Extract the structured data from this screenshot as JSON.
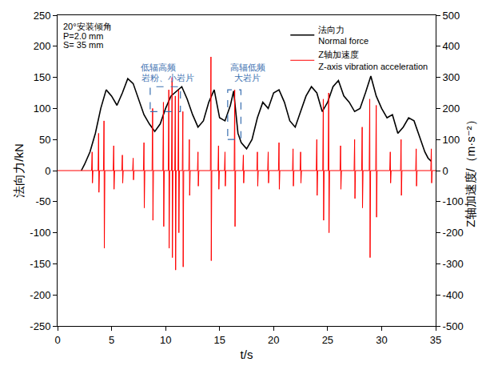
{
  "chart_data": {
    "type": "line",
    "x_label": "t/s",
    "y_label": "法向力/kN",
    "y2_label": "Z轴加速度/（m·s⁻²）",
    "xlim": [
      0,
      35
    ],
    "xticks": [
      0,
      5,
      10,
      15,
      20,
      25,
      30,
      35
    ],
    "ylim": [
      -250,
      250
    ],
    "yticks": [
      -250,
      -200,
      -150,
      -100,
      -50,
      0,
      50,
      100,
      150,
      200,
      250
    ],
    "y2lim": [
      -500,
      500
    ],
    "y2ticks": [
      -500,
      -400,
      -300,
      -200,
      -100,
      0,
      100,
      200,
      300,
      400,
      500
    ],
    "legend": "top-right",
    "grid": false,
    "annotations": [
      {
        "text": "20°安装倾角",
        "x": 0.4,
        "y": 232
      },
      {
        "text": "P=2.0 mm",
        "x": 0.4,
        "y": 217
      },
      {
        "text": "S= 35 mm",
        "x": 0.4,
        "y": 202
      },
      {
        "text": "低辐高频",
        "x": 9.3,
        "y": 166
      },
      {
        "text": "岩粉、小岩片",
        "x": 10.2,
        "y": 150
      },
      {
        "text": "高辐低频",
        "x": 17.6,
        "y": 166
      },
      {
        "text": "大岩片",
        "x": 17.6,
        "y": 150
      }
    ],
    "series": [
      {
        "name": "法向力",
        "name_en": "Normal force",
        "color": "#000000",
        "axis": "y",
        "x": [
          2.2,
          2.5,
          3,
          3.5,
          4,
          4.5,
          5,
          5.5,
          6,
          6.5,
          7,
          7.5,
          8,
          8.5,
          9,
          9.5,
          10,
          10.5,
          11,
          11.5,
          12,
          12.5,
          13,
          13.5,
          14,
          14.5,
          15,
          15.5,
          16,
          16.3,
          16.7,
          17,
          17.5,
          18,
          18.5,
          19,
          19.5,
          20,
          20.5,
          21,
          21.5,
          22,
          22.5,
          23,
          23.5,
          24,
          24.5,
          25,
          25.5,
          26,
          26.5,
          27,
          27.5,
          28,
          28.5,
          29,
          29.5,
          30,
          30.5,
          31,
          31.5,
          32,
          32.5,
          33,
          33.5,
          34,
          34.3,
          34.6
        ],
        "values": [
          0,
          10,
          30,
          60,
          100,
          130,
          120,
          105,
          125,
          148,
          140,
          115,
          90,
          75,
          63,
          75,
          100,
          120,
          128,
          135,
          115,
          90,
          70,
          80,
          110,
          130,
          85,
          80,
          105,
          128,
          60,
          45,
          35,
          50,
          85,
          110,
          100,
          125,
          130,
          110,
          80,
          70,
          95,
          120,
          135,
          125,
          95,
          110,
          135,
          145,
          120,
          110,
          95,
          100,
          125,
          152,
          120,
          100,
          85,
          90,
          60,
          70,
          85,
          80,
          55,
          30,
          20,
          15
        ]
      },
      {
        "name": "Z轴加速度",
        "name_en": "Z-axis vibration acceleration",
        "color": "#ff0000",
        "axis": "y2",
        "x": [
          0,
          3.15,
          3.2,
          3.23,
          3.28,
          3.75,
          3.8,
          3.83,
          3.88,
          4.25,
          4.3,
          4.33,
          4.38,
          5.15,
          5.2,
          5.23,
          5.28,
          5.95,
          6,
          6.03,
          6.08,
          6.95,
          7,
          7.03,
          7.08,
          7.95,
          8,
          8.03,
          8.08,
          8.75,
          8.8,
          8.83,
          8.88,
          9.75,
          9.8,
          9.83,
          9.88,
          10.25,
          10.3,
          10.33,
          10.38,
          10.55,
          10.6,
          10.63,
          10.68,
          10.85,
          10.9,
          10.93,
          10.98,
          11.15,
          11.2,
          11.23,
          11.28,
          11.55,
          11.6,
          11.63,
          11.68,
          12.15,
          12.2,
          12.23,
          12.28,
          12.95,
          13,
          13.03,
          13.08,
          14.15,
          14.2,
          14.23,
          14.28,
          14.85,
          14.9,
          14.93,
          14.98,
          15.45,
          15.5,
          15.53,
          15.58,
          16.35,
          16.4,
          16.43,
          16.48,
          17.15,
          17.2,
          17.23,
          17.28,
          18.45,
          18.5,
          18.53,
          18.58,
          19.45,
          19.5,
          19.53,
          19.58,
          20.45,
          20.5,
          20.53,
          20.58,
          21.75,
          21.8,
          21.83,
          21.88,
          22.45,
          22.5,
          22.53,
          22.58,
          23.95,
          24,
          24.03,
          24.08,
          24.55,
          24.6,
          24.63,
          24.68,
          25.05,
          25.1,
          25.13,
          25.18,
          26.15,
          26.2,
          26.23,
          26.28,
          27.45,
          27.5,
          27.53,
          27.58,
          28.15,
          28.2,
          28.23,
          28.28,
          28.85,
          28.9,
          28.93,
          28.98,
          29.45,
          29.5,
          29.53,
          29.58,
          30.75,
          30.8,
          30.83,
          30.88,
          31.75,
          31.8,
          31.83,
          31.88,
          33.15,
          33.2,
          33.23,
          33.28,
          34.55,
          34.6,
          34.63,
          34.68,
          35
        ],
        "values": [
          0,
          0,
          60,
          -40,
          0,
          0,
          120,
          -70,
          0,
          0,
          160,
          -250,
          0,
          0,
          80,
          -60,
          0,
          0,
          50,
          -40,
          0,
          0,
          40,
          -30,
          0,
          0,
          90,
          -120,
          0,
          0,
          200,
          -160,
          0,
          0,
          220,
          -180,
          0,
          0,
          260,
          -250,
          0,
          0,
          300,
          -280,
          0,
          0,
          240,
          -320,
          0,
          0,
          260,
          -200,
          0,
          0,
          190,
          -310,
          0,
          0,
          100,
          -80,
          0,
          0,
          60,
          -50,
          0,
          0,
          366,
          -290,
          0,
          0,
          80,
          -60,
          0,
          0,
          60,
          -50,
          0,
          0,
          260,
          -180,
          0,
          0,
          50,
          -40,
          0,
          0,
          60,
          -50,
          0,
          0,
          60,
          -40,
          0,
          0,
          90,
          -60,
          0,
          0,
          70,
          -50,
          0,
          0,
          60,
          -40,
          0,
          0,
          100,
          -80,
          0,
          0,
          230,
          -160,
          0,
          0,
          250,
          -200,
          0,
          0,
          80,
          -60,
          0,
          0,
          100,
          -90,
          0,
          0,
          140,
          -120,
          0,
          0,
          230,
          -280,
          0,
          0,
          210,
          -150,
          0,
          0,
          60,
          -40,
          0,
          0,
          100,
          -80,
          0,
          0,
          70,
          -50,
          0,
          0,
          70,
          -40,
          0,
          0
        ]
      }
    ]
  }
}
